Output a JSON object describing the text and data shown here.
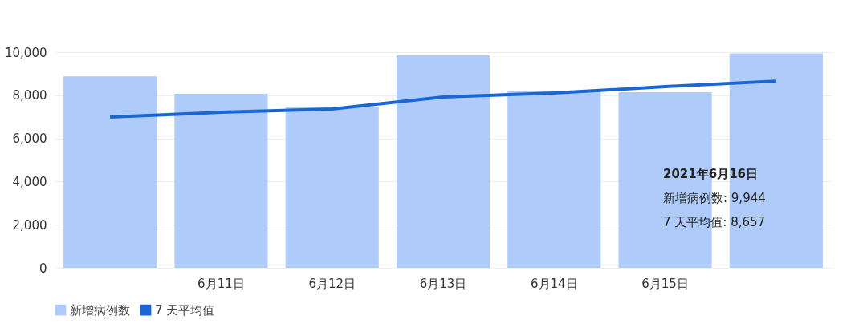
{
  "chart_data": {
    "type": "bar",
    "categories": [
      null,
      "6月11日",
      "6月12日",
      "6月13日",
      "6月14日",
      "6月15日",
      null
    ],
    "series": [
      {
        "name": "新增病例数",
        "color": "#aecbfa",
        "values": [
          8880,
          8070,
          7470,
          9850,
          8180,
          8140,
          9944
        ]
      },
      {
        "name": "7 天平均值",
        "type": "line",
        "color": "#1a66d2",
        "values": [
          6990,
          7210,
          7360,
          7920,
          8100,
          8400,
          8657
        ]
      }
    ],
    "ylim": [
      0,
      10000
    ],
    "yticks": [
      {
        "value": 0,
        "label": "0"
      },
      {
        "value": 2000,
        "label": "2,000"
      },
      {
        "value": 4000,
        "label": "4,000"
      },
      {
        "value": 6000,
        "label": "6,000"
      },
      {
        "value": 8000,
        "label": "8,000"
      },
      {
        "value": 10000,
        "label": "10,000"
      }
    ],
    "grid": "y",
    "legend": "bottom left",
    "line_style": "solid",
    "annotations": [
      "2021年6月16日",
      "新增病例数: 9,944",
      "7 天平均值: 8,657"
    ]
  }
}
